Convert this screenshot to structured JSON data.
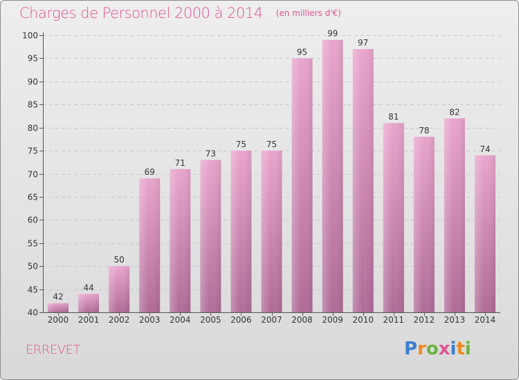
{
  "chart_data": {
    "type": "bar",
    "title": "Charges de Personnel 2000 à 2014",
    "unit_note": "(en milliers d'€)",
    "categories": [
      "2000",
      "2001",
      "2002",
      "2003",
      "2004",
      "2005",
      "2006",
      "2007",
      "2008",
      "2009",
      "2010",
      "2011",
      "2012",
      "2013",
      "2014"
    ],
    "values": [
      42,
      44,
      50,
      69,
      71,
      73,
      75,
      75,
      95,
      99,
      97,
      81,
      78,
      82,
      74
    ],
    "ylim": [
      40,
      100
    ],
    "yticks": [
      40,
      45,
      50,
      55,
      60,
      65,
      70,
      75,
      80,
      85,
      90,
      95,
      100
    ],
    "grid": true,
    "xlabel": "",
    "ylabel": ""
  },
  "commune_name": "ERREVET",
  "logo": {
    "text": "Proxiti",
    "letter_colors": [
      "#3a7fd0",
      "#f08a1c",
      "#6db33f",
      "#e0548f",
      "#3a7fd0",
      "#f08a1c",
      "#6db33f"
    ]
  },
  "colors": {
    "title": "#e0548f",
    "bar": "#c978a6",
    "bar_light": "#e9a5cd",
    "bar_dark": "#b06c98",
    "grid": "#c9c9c9",
    "axis": "#555555"
  }
}
